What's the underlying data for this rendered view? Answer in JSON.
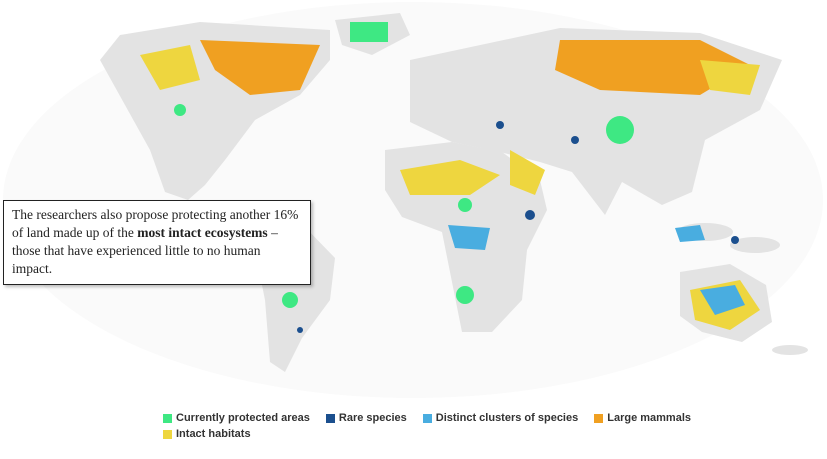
{
  "annotation": {
    "parts": [
      "The researchers also propose protecting another 16% of land made up of the ",
      "most intact ecosystems",
      " – those that have experienced little to no human impact."
    ]
  },
  "legend": {
    "items": [
      {
        "label": "Currently protected areas",
        "color": "#3ee883"
      },
      {
        "label": "Rare species",
        "color": "#1b4f8e"
      },
      {
        "label": "Distinct clusters of species",
        "color": "#49ade0"
      },
      {
        "label": "Large mammals",
        "color": "#f0a021"
      },
      {
        "label": "Intact habitats",
        "color": "#eed63f"
      }
    ]
  }
}
